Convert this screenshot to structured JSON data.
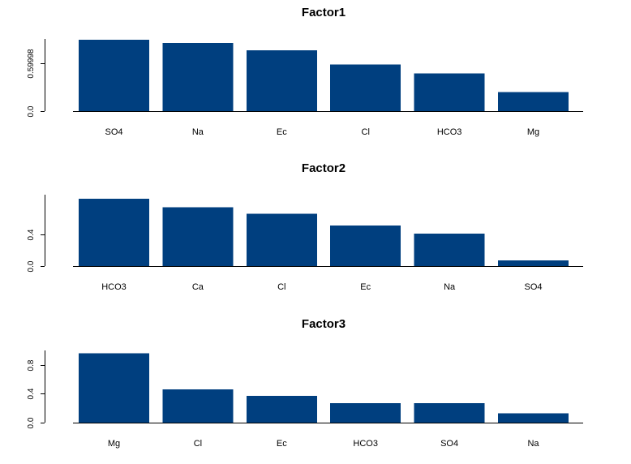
{
  "chart_data": [
    {
      "type": "bar",
      "title": "Factor1",
      "categories": [
        "SO4",
        "Na",
        "Ec",
        "Cl",
        "HCO3",
        "Mg"
      ],
      "values": [
        0.89,
        0.85,
        0.76,
        0.58,
        0.47,
        0.24
      ],
      "ylim": [
        0,
        0.9
      ],
      "yticks": [
        0.0,
        0.59998
      ],
      "ytick_labels": [
        "0.0",
        "0.59998"
      ],
      "xlabel": "",
      "ylabel": "",
      "bar_color": "#003f7f"
    },
    {
      "type": "bar",
      "title": "Factor2",
      "categories": [
        "HCO3",
        "Ca",
        "Cl",
        "Ec",
        "Na",
        "SO4"
      ],
      "values": [
        0.85,
        0.74,
        0.66,
        0.51,
        0.41,
        0.07
      ],
      "ylim": [
        0,
        0.9
      ],
      "yticks": [
        0.0,
        0.4
      ],
      "ytick_labels": [
        "0.0",
        "0.4"
      ],
      "xlabel": "",
      "ylabel": "",
      "bar_color": "#003f7f"
    },
    {
      "type": "bar",
      "title": "Factor3",
      "categories": [
        "Mg",
        "Cl",
        "Ec",
        "HCO3",
        "SO4",
        "Na"
      ],
      "values": [
        0.96,
        0.46,
        0.37,
        0.27,
        0.27,
        0.13
      ],
      "ylim": [
        0,
        1.0
      ],
      "yticks": [
        0.0,
        0.4,
        0.8
      ],
      "ytick_labels": [
        "0.0",
        "0.4",
        "0.8"
      ],
      "xlabel": "",
      "ylabel": "",
      "bar_color": "#003f7f"
    }
  ]
}
